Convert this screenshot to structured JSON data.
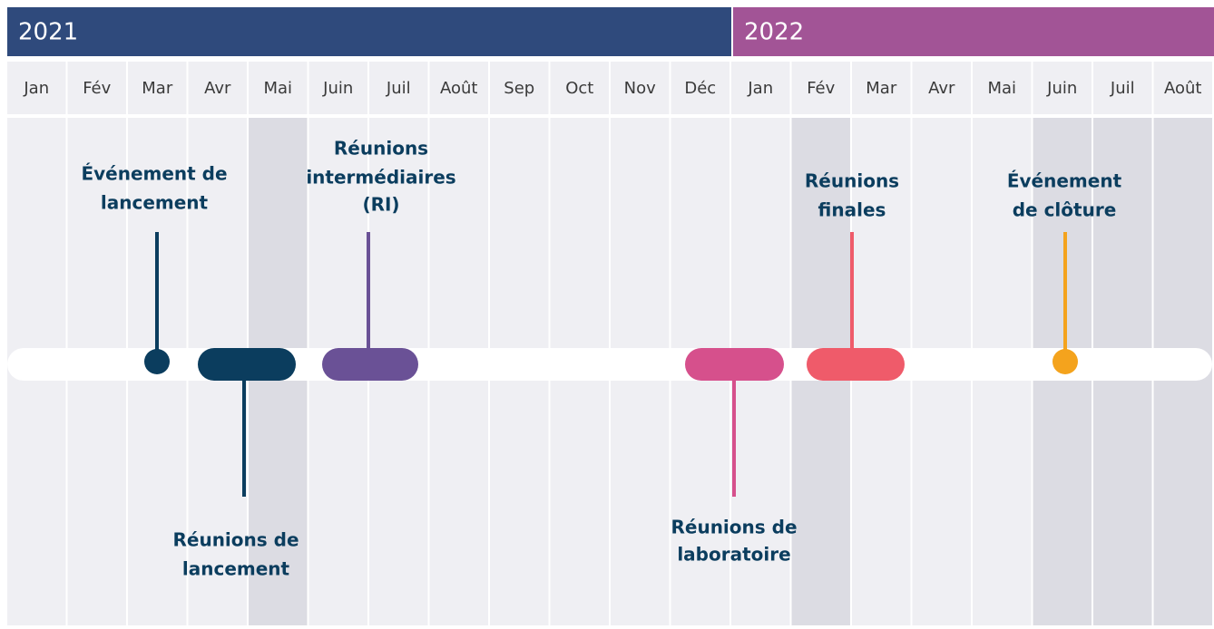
{
  "years": [
    "2021",
    "2022"
  ],
  "months": [
    "Jan",
    "Fév",
    "Mar",
    "Avr",
    "Mai",
    "Juin",
    "Juil",
    "Août",
    "Sep",
    "Oct",
    "Nov",
    "Déc",
    "Jan",
    "Fév",
    "Mar",
    "Avr",
    "Mai",
    "Juin",
    "Juil",
    "Août"
  ],
  "events": [
    {
      "label": [
        "Événement de",
        "lancement"
      ]
    },
    {
      "label": [
        "Réunions de",
        "lancement"
      ]
    },
    {
      "label": [
        "Réunions",
        "intermédiaires",
        "(RI)"
      ]
    },
    {
      "label": [
        "Réunions de",
        "laboratoire"
      ]
    },
    {
      "label": [
        "Réunions",
        "finales"
      ]
    },
    {
      "label": [
        "Événement",
        "de clôture"
      ]
    }
  ]
}
